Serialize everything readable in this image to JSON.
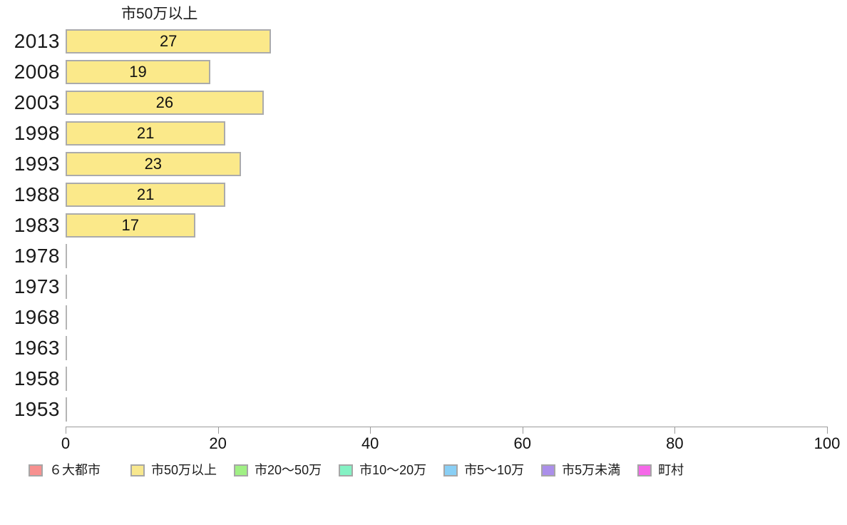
{
  "chart_data": {
    "type": "bar",
    "orientation": "horizontal",
    "title": "市50万以上",
    "categories": [
      "2013",
      "2008",
      "2003",
      "1998",
      "1993",
      "1988",
      "1983",
      "1978",
      "1973",
      "1968",
      "1963",
      "1958",
      "1953"
    ],
    "values": [
      27,
      19,
      26,
      21,
      23,
      21,
      17,
      0,
      0,
      0,
      0,
      0,
      0
    ],
    "xlabel": "",
    "ylabel": "",
    "xlim": [
      0,
      100
    ],
    "x_ticks": [
      0,
      20,
      40,
      60,
      80,
      100
    ],
    "grid": "off",
    "bar_fill": "#FBE98A",
    "bar_border": "#ABABAB",
    "axis_color": "#9A9A9A",
    "legend_position": "bottom",
    "legend": [
      {
        "label": "６大都市",
        "color": "#F7908F"
      },
      {
        "label": "市50万以上",
        "color": "#F8E88E"
      },
      {
        "label": "市20〜50万",
        "color": "#A0F084"
      },
      {
        "label": "市10〜20万",
        "color": "#84F2C4"
      },
      {
        "label": "市5〜10万",
        "color": "#89CFF5"
      },
      {
        "label": "市5万未満",
        "color": "#AB8FEA"
      },
      {
        "label": "町村",
        "color": "#F568E8"
      }
    ]
  }
}
